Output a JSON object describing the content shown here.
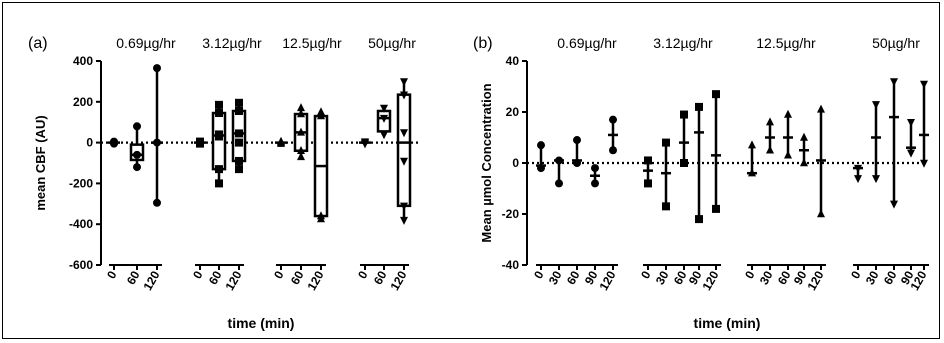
{
  "chart_data": [
    {
      "type": "box",
      "panel_label": "(a)",
      "ylabel": "mean CBF (AU)",
      "xlabel": "time (min)",
      "ylim": [
        -600,
        400
      ],
      "yticks": [
        -600,
        -400,
        -200,
        0,
        200,
        400
      ],
      "groups": [
        {
          "label": "0.69µg/hr",
          "marker": "circle",
          "points": [
            {
              "tick": "0",
              "min": -5,
              "q1": -3,
              "median": 0,
              "q3": 3,
              "max": 5,
              "points": [
                -5,
                -2,
                0,
                2,
                5
              ]
            },
            {
              "tick": "60",
              "min": -120,
              "q1": -85,
              "median": -60,
              "q3": -10,
              "max": 80,
              "points": [
                -120,
                -60,
                80
              ]
            },
            {
              "tick": "120",
              "min": -295,
              "q1": -5,
              "median": 0,
              "q3": 5,
              "max": 365,
              "points": [
                -295,
                0,
                365
              ]
            }
          ]
        },
        {
          "label": "3.12µg/hr",
          "marker": "square",
          "points": [
            {
              "tick": "0",
              "min": -5,
              "q1": -3,
              "median": 0,
              "q3": 3,
              "max": 5,
              "points": [
                -5,
                0,
                5
              ]
            },
            {
              "tick": "60",
              "min": -200,
              "q1": -130,
              "median": 35,
              "q3": 145,
              "max": 185,
              "points": [
                -200,
                -130,
                30,
                40,
                145,
                185
              ]
            },
            {
              "tick": "120",
              "min": -130,
              "q1": -90,
              "median": 45,
              "q3": 155,
              "max": 195,
              "points": [
                -130,
                -90,
                0,
                45,
                155,
                195
              ]
            }
          ]
        },
        {
          "label": "12.5µg/hr",
          "marker": "triangle-up",
          "points": [
            {
              "tick": "0",
              "min": -5,
              "q1": -3,
              "median": 0,
              "q3": 3,
              "max": 5,
              "points": [
                -5,
                0,
                5
              ]
            },
            {
              "tick": "60",
              "min": -70,
              "q1": -40,
              "median": 50,
              "q3": 140,
              "max": 170,
              "points": [
                -70,
                -40,
                50,
                140,
                170
              ]
            },
            {
              "tick": "120",
              "min": -375,
              "q1": -360,
              "median": -115,
              "q3": 130,
              "max": 150,
              "points": [
                -375,
                -360,
                130,
                150
              ]
            }
          ]
        },
        {
          "label": "50µg/hr",
          "marker": "triangle-down",
          "points": [
            {
              "tick": "0",
              "min": -5,
              "q1": -3,
              "median": 0,
              "q3": 3,
              "max": 5,
              "points": [
                -5,
                0,
                5
              ]
            },
            {
              "tick": "60",
              "min": 40,
              "q1": 55,
              "median": 120,
              "q3": 155,
              "max": 170,
              "points": [
                40,
                120,
                170
              ]
            },
            {
              "tick": "120",
              "min": -380,
              "q1": -310,
              "median": 0,
              "q3": 235,
              "max": 300,
              "points": [
                -380,
                -310,
                -90,
                50,
                235,
                300
              ]
            }
          ]
        }
      ]
    },
    {
      "type": "errorbar",
      "panel_label": "(b)",
      "ylabel": "Mean µmol Concentration",
      "xlabel": "time (min)",
      "ylim": [
        -40,
        40
      ],
      "yticks": [
        -40,
        -20,
        0,
        20,
        40
      ],
      "groups": [
        {
          "label": "0.69µg/hr",
          "marker": "circle",
          "points": [
            {
              "tick": "0",
              "mean": -1,
              "low": -2,
              "high": 7
            },
            {
              "tick": "30",
              "mean": 1,
              "low": -8,
              "high": 1
            },
            {
              "tick": "60",
              "mean": 1,
              "low": 0,
              "high": 9
            },
            {
              "tick": "90",
              "mean": -5,
              "low": -8,
              "high": -2
            },
            {
              "tick": "120",
              "mean": 11,
              "low": 5,
              "high": 17
            }
          ]
        },
        {
          "label": "3.12µg/hr",
          "marker": "square",
          "points": [
            {
              "tick": "0",
              "mean": -3,
              "low": -8,
              "high": 1
            },
            {
              "tick": "30",
              "mean": -4,
              "low": -17,
              "high": 8
            },
            {
              "tick": "60",
              "mean": 8,
              "low": 0,
              "high": 19
            },
            {
              "tick": "90",
              "mean": 12,
              "low": -22,
              "high": 22
            },
            {
              "tick": "120",
              "mean": 3,
              "low": -18,
              "high": 27
            }
          ]
        },
        {
          "label": "12.5µg/hr",
          "marker": "triangle-up",
          "points": [
            {
              "tick": "0",
              "mean": -4,
              "low": -4,
              "high": 7
            },
            {
              "tick": "30",
              "mean": 10,
              "low": 5,
              "high": 16
            },
            {
              "tick": "60",
              "mean": 10,
              "low": 3,
              "high": 19
            },
            {
              "tick": "90",
              "mean": 5,
              "low": 0,
              "high": 10
            },
            {
              "tick": "120",
              "mean": 1,
              "low": -20,
              "high": 21
            }
          ]
        },
        {
          "label": "50µg/hr",
          "marker": "triangle-down",
          "points": [
            {
              "tick": "0",
              "mean": -2,
              "low": -6,
              "high": -2
            },
            {
              "tick": "30",
              "mean": 10,
              "low": -6,
              "high": 23
            },
            {
              "tick": "60",
              "mean": 18,
              "low": -16,
              "high": 32
            },
            {
              "tick": "90",
              "mean": 6,
              "low": 4,
              "high": 16
            },
            {
              "tick": "120",
              "mean": 11,
              "low": 0,
              "high": 31
            }
          ]
        }
      ]
    }
  ]
}
